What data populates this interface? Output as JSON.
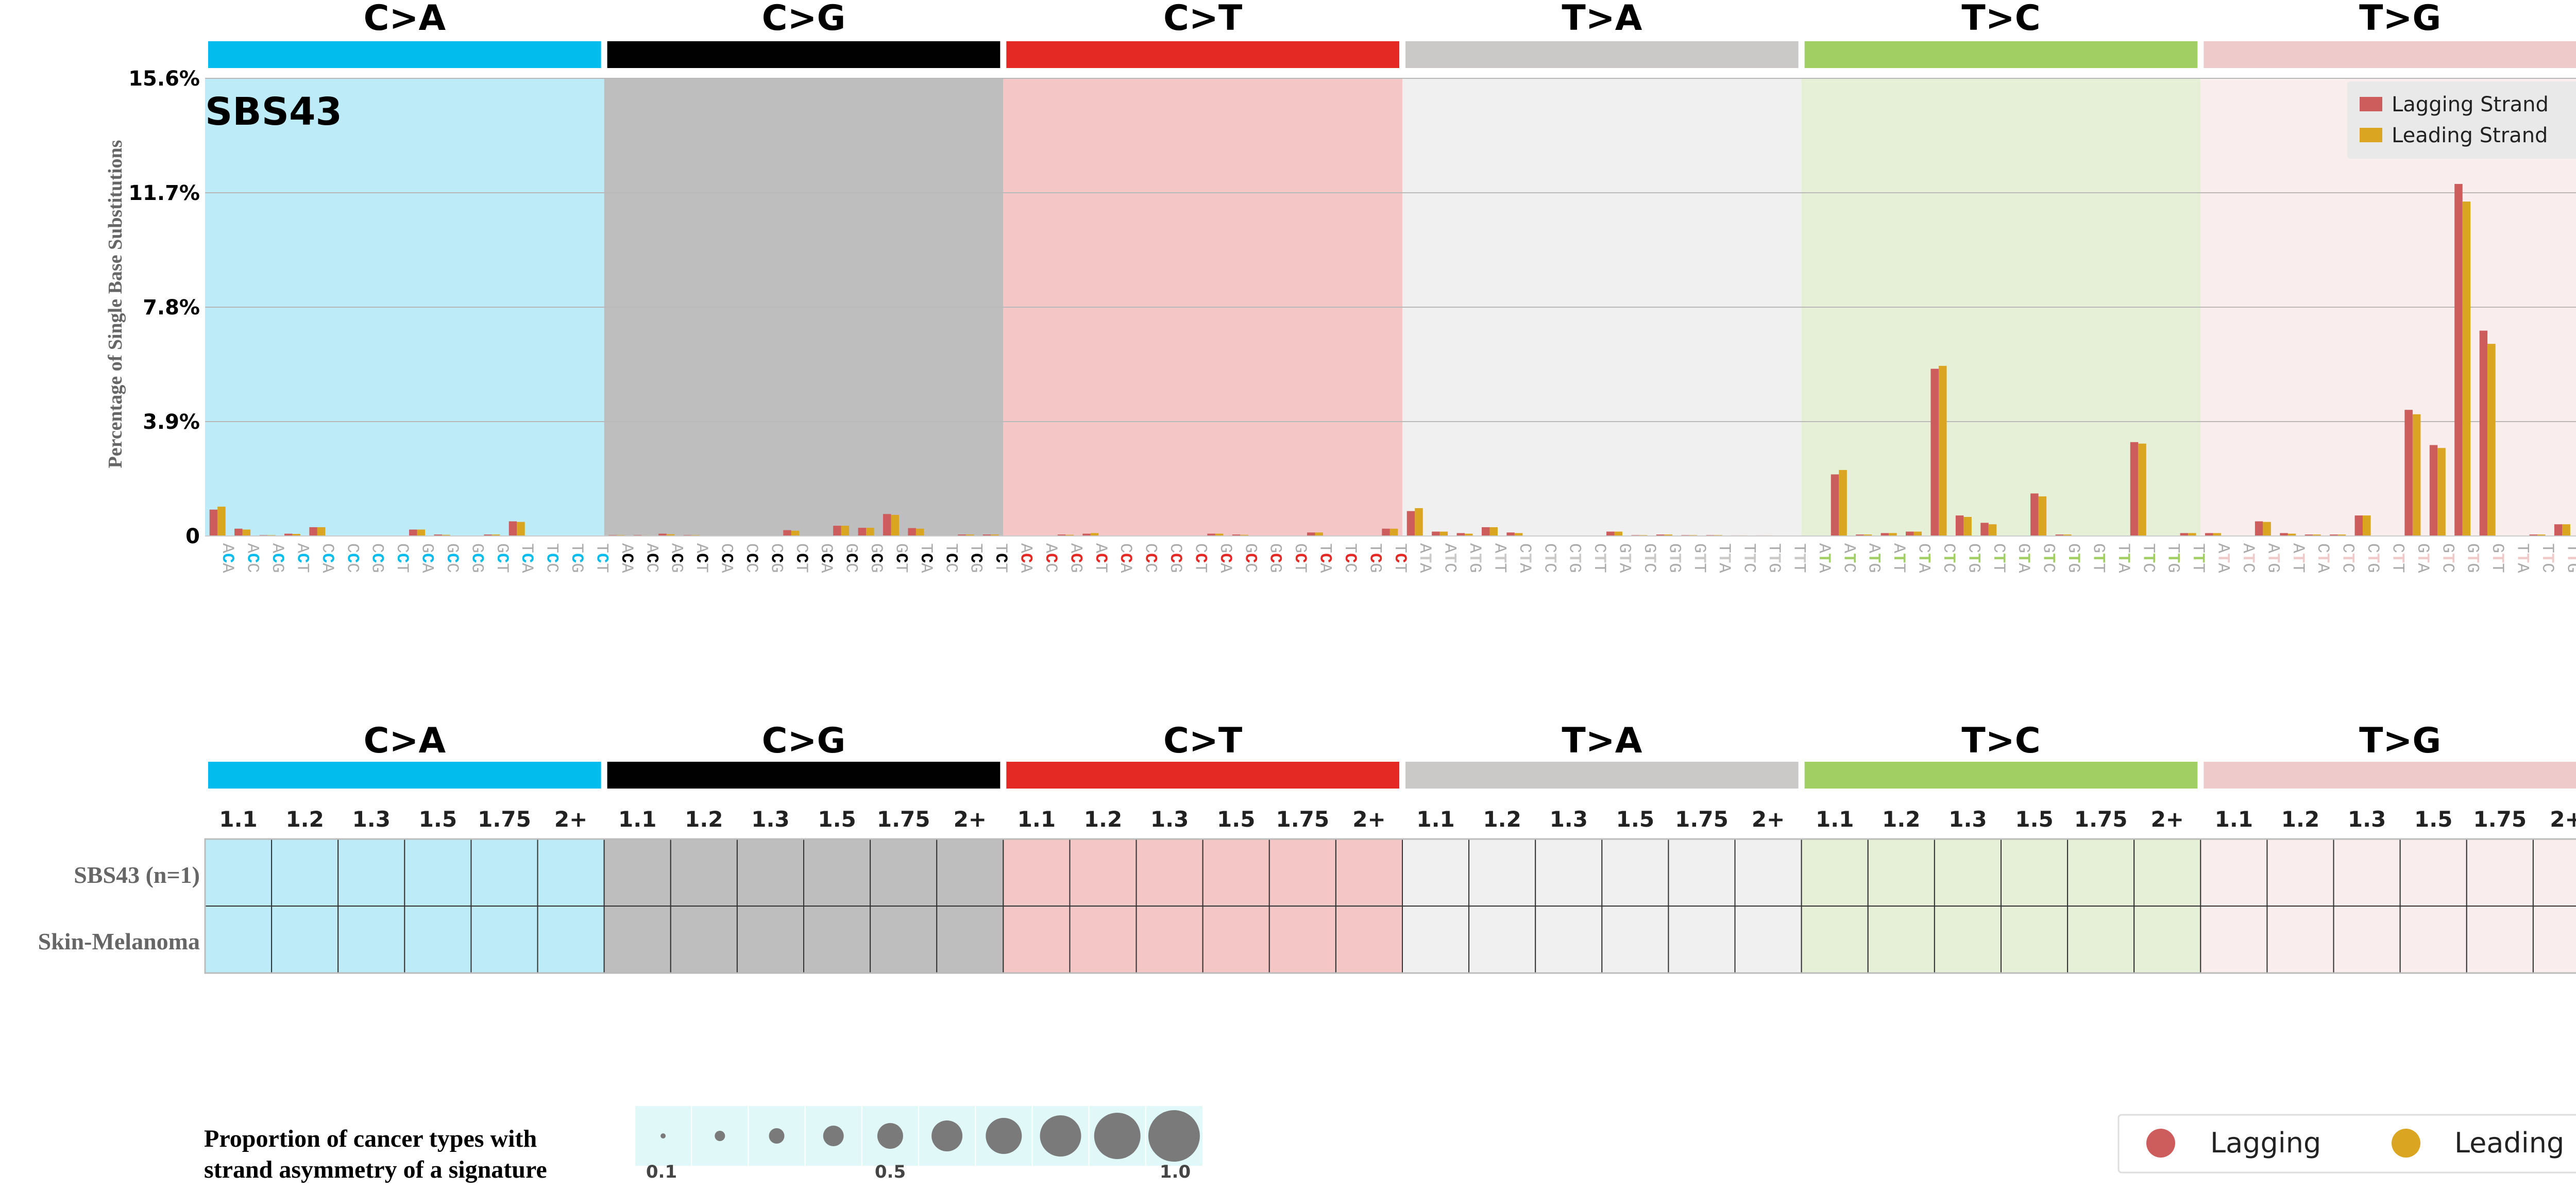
{
  "chart_data": {
    "type": "bar",
    "signature": "SBS43",
    "ylabel": "Percentage of Single Base Substitutions",
    "yticks": [
      "0",
      "3.9%",
      "7.8%",
      "11.7%",
      "15.6%"
    ],
    "ylim": [
      0,
      15.6
    ],
    "grid": true,
    "legend_position": "top-right",
    "series": [
      {
        "name": "Lagging Strand",
        "color": "#CD5C5C"
      },
      {
        "name": "Leading Strand",
        "color": "#DAA520"
      }
    ],
    "mutation_types": [
      {
        "label": "C>A",
        "bar_color": "#03BCEE",
        "bg_color": "#BDEBF8",
        "ref": "C",
        "lagging": [
          0.9,
          0.25,
          0.03,
          0.08,
          0.3,
          0.0,
          0.0,
          0.0,
          0.22,
          0.05,
          0.0,
          0.05,
          0.5,
          0.0,
          0.0,
          0.0
        ],
        "leading": [
          1.0,
          0.22,
          0.03,
          0.07,
          0.3,
          0.0,
          0.0,
          0.0,
          0.22,
          0.04,
          0.0,
          0.05,
          0.48,
          0.0,
          0.0,
          0.0
        ]
      },
      {
        "label": "C>G",
        "bar_color": "#010101",
        "bg_color": "#BEBEBE",
        "ref": "C",
        "lagging": [
          0.03,
          0.03,
          0.08,
          0.03,
          0.0,
          0.0,
          0.0,
          0.2,
          0.0,
          0.35,
          0.28,
          0.75,
          0.27,
          0.0,
          0.05,
          0.05
        ],
        "leading": [
          0.03,
          0.02,
          0.06,
          0.03,
          0.0,
          0.0,
          0.0,
          0.18,
          0.0,
          0.35,
          0.28,
          0.72,
          0.25,
          0.0,
          0.05,
          0.05
        ]
      },
      {
        "label": "C>T",
        "bar_color": "#E42824",
        "bg_color": "#F5C6C6",
        "ref": "C",
        "lagging": [
          0.0,
          0.0,
          0.05,
          0.08,
          0.0,
          0.0,
          0.0,
          0.0,
          0.08,
          0.05,
          0.0,
          0.0,
          0.12,
          0.0,
          0.0,
          0.25
        ],
        "leading": [
          0.0,
          0.0,
          0.04,
          0.1,
          0.0,
          0.0,
          0.0,
          0.0,
          0.08,
          0.04,
          0.0,
          0.0,
          0.12,
          0.0,
          0.0,
          0.25
        ]
      },
      {
        "label": "T>A",
        "bar_color": "#CBC9C8",
        "bg_color": "#F0F0F0",
        "ref": "T",
        "lagging": [
          0.85,
          0.15,
          0.1,
          0.3,
          0.12,
          0.0,
          0.0,
          0.0,
          0.15,
          0.03,
          0.05,
          0.03,
          0.03,
          0.02,
          0.02,
          0.0
        ],
        "leading": [
          0.95,
          0.15,
          0.08,
          0.3,
          0.1,
          0.0,
          0.0,
          0.0,
          0.15,
          0.03,
          0.05,
          0.03,
          0.03,
          0.02,
          0.02,
          0.0
        ]
      },
      {
        "label": "T>C",
        "bar_color": "#A1CF64",
        "bg_color": "#E6F0D6",
        "ref": "T",
        "lagging": [
          0.0,
          2.1,
          0.05,
          0.1,
          0.15,
          5.7,
          0.7,
          0.45,
          0.0,
          1.45,
          0.05,
          0.0,
          0.0,
          3.2,
          0.0,
          0.1
        ],
        "leading": [
          0.0,
          2.25,
          0.05,
          0.1,
          0.15,
          5.8,
          0.65,
          0.4,
          0.0,
          1.35,
          0.05,
          0.0,
          0.0,
          3.15,
          0.0,
          0.1
        ]
      },
      {
        "label": "T>G",
        "bar_color": "#EECBCA",
        "bg_color": "#F9EDED",
        "ref": "T",
        "lagging": [
          0.1,
          0.0,
          0.5,
          0.1,
          0.05,
          0.05,
          0.7,
          0.0,
          4.3,
          3.1,
          12.0,
          7.0,
          0.0,
          0.05,
          0.4,
          0.0
        ],
        "leading": [
          0.1,
          0.0,
          0.48,
          0.08,
          0.05,
          0.05,
          0.7,
          0.0,
          4.15,
          3.0,
          11.4,
          6.55,
          0.0,
          0.05,
          0.4,
          0.05
        ]
      }
    ],
    "context_labels": [
      "A_A",
      "A_C",
      "A_G",
      "A_T",
      "C_A",
      "C_C",
      "C_G",
      "C_T",
      "G_A",
      "G_C",
      "G_G",
      "G_T",
      "T_A",
      "T_C",
      "T_G",
      "T_T"
    ]
  },
  "bubble_panel": {
    "mutation_types": [
      "C>A",
      "C>G",
      "C>T",
      "T>A",
      "T>C",
      "T>G"
    ],
    "bins": [
      "1.1",
      "1.2",
      "1.3",
      "1.5",
      "1.75",
      "2+"
    ],
    "rows": [
      "SBS43 (n=1)",
      "Skin-Melanoma"
    ],
    "values": "none"
  },
  "size_legend": {
    "title_line1": "Proportion of cancer types with",
    "title_line2": "strand asymmetry of a signature",
    "ticks": [
      "0.1",
      "0.5",
      "1.0"
    ],
    "bubble_bg": "#E0F8F8"
  },
  "color_legend": {
    "items": [
      {
        "label": "Lagging",
        "color": "#CD5C5C"
      },
      {
        "label": "Leading",
        "color": "#DAA520"
      }
    ]
  }
}
